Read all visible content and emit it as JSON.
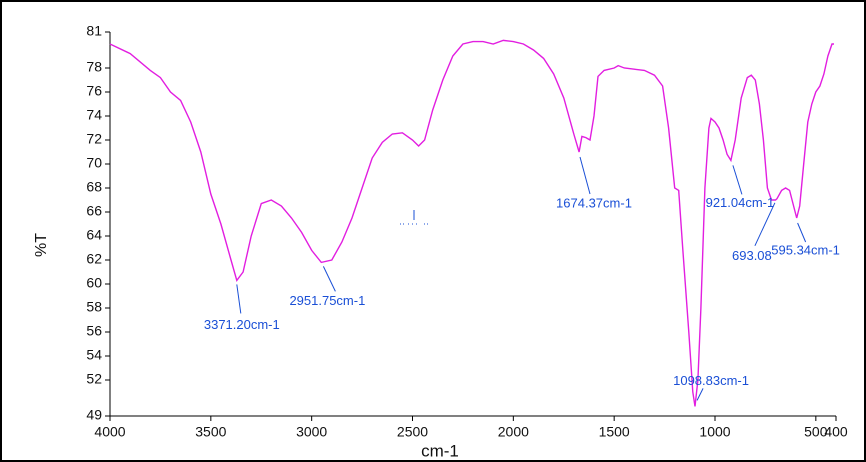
{
  "chart_data": {
    "type": "line",
    "xlabel": "cm-1",
    "ylabel": "%T",
    "color": "#e21ee0",
    "reverse_x": true,
    "xlim": [
      4000,
      400
    ],
    "ylim": [
      49,
      81
    ],
    "xticks": [
      4000,
      3500,
      3000,
      2500,
      2000,
      1500,
      1000,
      500,
      400
    ],
    "yticks": [
      49,
      52,
      54,
      56,
      58,
      60,
      62,
      64,
      66,
      68,
      70,
      72,
      74,
      76,
      78,
      81
    ],
    "x": [
      4000,
      3900,
      3800,
      3750,
      3700,
      3650,
      3600,
      3550,
      3500,
      3450,
      3400,
      3371,
      3340,
      3300,
      3250,
      3200,
      3150,
      3100,
      3050,
      3000,
      2952,
      2900,
      2850,
      2800,
      2750,
      2700,
      2650,
      2600,
      2550,
      2500,
      2470,
      2440,
      2400,
      2350,
      2300,
      2250,
      2200,
      2150,
      2100,
      2050,
      2000,
      1950,
      1900,
      1850,
      1800,
      1750,
      1700,
      1674,
      1660,
      1640,
      1620,
      1600,
      1580,
      1550,
      1500,
      1480,
      1450,
      1400,
      1350,
      1300,
      1260,
      1230,
      1200,
      1180,
      1160,
      1130,
      1110,
      1099,
      1085,
      1070,
      1050,
      1030,
      1020,
      1000,
      980,
      960,
      940,
      921,
      900,
      870,
      840,
      820,
      800,
      780,
      760,
      740,
      720,
      700,
      693,
      670,
      650,
      630,
      610,
      595,
      580,
      560,
      540,
      520,
      500,
      480,
      460,
      440,
      420,
      410
    ],
    "values": [
      80,
      79.2,
      77.8,
      77.2,
      76,
      75.3,
      73.5,
      71,
      67.5,
      65,
      62,
      60.3,
      61,
      64,
      66.7,
      67,
      66.5,
      65.5,
      64.3,
      62.8,
      61.8,
      62,
      63.5,
      65.5,
      68,
      70.5,
      71.8,
      72.5,
      72.6,
      72,
      71.5,
      72,
      74.5,
      77,
      79,
      80,
      80.2,
      80.2,
      80,
      80.3,
      80.2,
      80,
      79.5,
      78.8,
      77.5,
      75.5,
      72.5,
      71,
      72.3,
      72.2,
      72,
      74,
      77.3,
      77.8,
      78,
      78.2,
      78,
      77.9,
      77.8,
      77.4,
      76.5,
      73,
      68,
      67.8,
      63,
      56,
      51,
      49.8,
      52,
      58,
      68,
      73,
      73.8,
      73.5,
      73,
      72,
      70.8,
      70.3,
      72,
      75.5,
      77.2,
      77.4,
      77,
      75,
      72,
      68,
      67,
      67,
      67.1,
      67.8,
      68,
      67.8,
      66.5,
      65.5,
      66.5,
      70,
      73.5,
      75,
      76,
      76.5,
      77.5,
      79,
      80,
      80
    ],
    "annotations": [
      {
        "text": "3371.20cm-1",
        "x": 3371.2,
        "y": 60.3
      },
      {
        "text": "2951.75cm-1",
        "x": 2951.75,
        "y": 61.8
      },
      {
        "text": "1674.37cm-1",
        "x": 1674.37,
        "y": 71
      },
      {
        "text": "1098.83cm-1",
        "x": 1098.83,
        "y": 49.8
      },
      {
        "text": "921.04cm-1",
        "x": 921.04,
        "y": 70.3
      },
      {
        "text": "693.08",
        "x": 693.08,
        "y": 67.1
      },
      {
        "text": "595.34cm-1",
        "x": 595.34,
        "y": 65.5
      }
    ]
  }
}
